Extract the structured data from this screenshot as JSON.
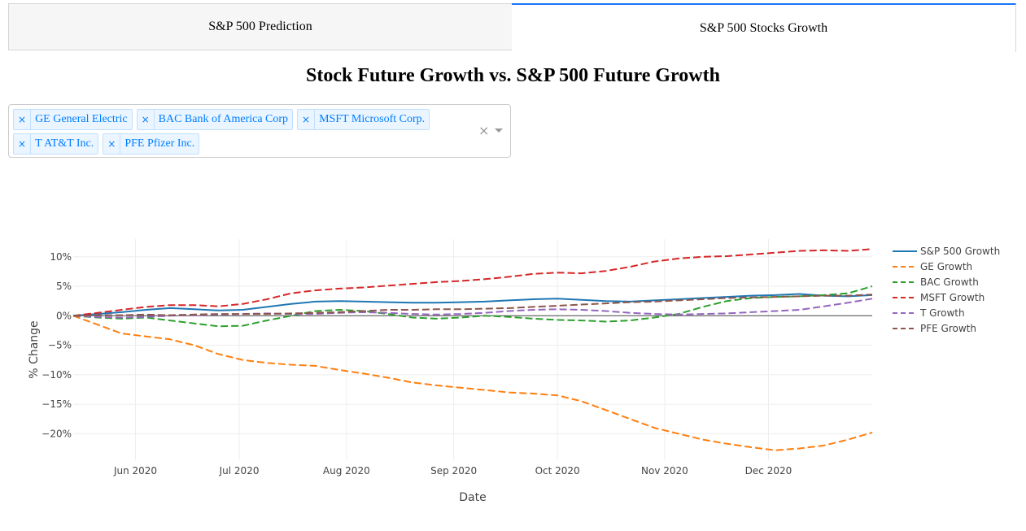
{
  "tabs": [
    {
      "label": "S&P 500 Prediction",
      "active": false
    },
    {
      "label": "S&P 500 Stocks Growth",
      "active": true
    }
  ],
  "page_title": "Stock Future Growth vs. S&P 500 Future Growth",
  "dropdown": {
    "selected": [
      {
        "label": "GE General Electric"
      },
      {
        "label": "BAC Bank of America Corp"
      },
      {
        "label": "MSFT Microsoft Corp."
      },
      {
        "label": "T AT&T Inc."
      },
      {
        "label": "PFE Pfizer Inc."
      }
    ],
    "remove_glyph": "×",
    "clear_glyph": "×"
  },
  "chart_data": {
    "type": "line",
    "xlabel": "Date",
    "ylabel": "% Change",
    "xlim": [
      "2020-05-14",
      "2020-12-31"
    ],
    "ylim": [
      -24.5,
      13
    ],
    "x_ticks": [
      "Jun 2020",
      "Jul 2020",
      "Aug 2020",
      "Sep 2020",
      "Oct 2020",
      "Nov 2020",
      "Dec 2020"
    ],
    "y_ticks": [
      "10%",
      "5%",
      "0%",
      "−5%",
      "−10%",
      "−15%",
      "−20%"
    ],
    "y_tick_values": [
      10,
      5,
      0,
      -5,
      -10,
      -15,
      -20
    ],
    "legend_position": "right",
    "grid": true,
    "x": [
      "2020-05-14",
      "2020-05-21",
      "2020-05-28",
      "2020-06-04",
      "2020-06-11",
      "2020-06-18",
      "2020-06-25",
      "2020-07-02",
      "2020-07-09",
      "2020-07-16",
      "2020-07-23",
      "2020-07-30",
      "2020-08-06",
      "2020-08-13",
      "2020-08-20",
      "2020-08-27",
      "2020-09-03",
      "2020-09-10",
      "2020-09-17",
      "2020-09-24",
      "2020-10-01",
      "2020-10-08",
      "2020-10-15",
      "2020-10-22",
      "2020-10-29",
      "2020-11-05",
      "2020-11-12",
      "2020-11-19",
      "2020-11-26",
      "2020-12-03",
      "2020-12-10",
      "2020-12-17",
      "2020-12-24",
      "2020-12-31"
    ],
    "series": [
      {
        "name": "S&P 500 Growth",
        "color": "#1f77b4",
        "dash": "solid",
        "values": [
          0,
          0.3,
          0.6,
          1.0,
          1.3,
          1.1,
          0.9,
          1.0,
          1.5,
          2.0,
          2.4,
          2.5,
          2.4,
          2.3,
          2.2,
          2.2,
          2.3,
          2.4,
          2.6,
          2.8,
          2.9,
          2.7,
          2.5,
          2.4,
          2.6,
          2.8,
          3.0,
          3.2,
          3.4,
          3.5,
          3.7,
          3.4,
          3.3,
          3.5
        ]
      },
      {
        "name": "GE Growth",
        "color": "#ff7f0e",
        "dash": "dash",
        "values": [
          0,
          -1.5,
          -3.0,
          -3.5,
          -4.0,
          -5.0,
          -6.5,
          -7.5,
          -8.0,
          -8.3,
          -8.5,
          -9.2,
          -9.8,
          -10.5,
          -11.3,
          -11.8,
          -12.2,
          -12.6,
          -13.0,
          -13.2,
          -13.5,
          -14.5,
          -16.0,
          -17.5,
          -19.0,
          -20.0,
          -21.0,
          -21.7,
          -22.3,
          -22.8,
          -22.5,
          -22.0,
          -21.0,
          -19.8
        ]
      },
      {
        "name": "BAC Growth",
        "color": "#2ca02c",
        "dash": "dash",
        "values": [
          0,
          -0.3,
          -0.5,
          -0.3,
          -0.8,
          -1.3,
          -1.8,
          -1.7,
          -0.8,
          0,
          0.8,
          1.0,
          0.8,
          0.3,
          -0.3,
          -0.5,
          -0.3,
          0,
          -0.2,
          -0.5,
          -0.7,
          -0.8,
          -1.0,
          -0.8,
          -0.3,
          0.3,
          1.5,
          2.5,
          3.0,
          3.2,
          3.3,
          3.5,
          3.8,
          5.0
        ]
      },
      {
        "name": "MSFT Growth",
        "color": "#d62728",
        "dash": "dash",
        "values": [
          0,
          0.5,
          1.0,
          1.5,
          1.8,
          1.8,
          1.6,
          2.0,
          2.8,
          3.8,
          4.3,
          4.6,
          4.8,
          5.1,
          5.4,
          5.7,
          5.9,
          6.2,
          6.6,
          7.1,
          7.3,
          7.2,
          7.6,
          8.3,
          9.2,
          9.7,
          10.0,
          10.1,
          10.4,
          10.7,
          11.0,
          11.1,
          11.0,
          11.3
        ]
      },
      {
        "name": "T Growth",
        "color": "#9467bd",
        "dash": "dash",
        "values": [
          0,
          -0.2,
          -0.3,
          -0.2,
          0,
          0.1,
          0.2,
          0.3,
          0.4,
          0.3,
          0.3,
          0.5,
          0.6,
          0.5,
          0.3,
          0.2,
          0.3,
          0.5,
          0.8,
          1.0,
          1.1,
          1.0,
          0.8,
          0.5,
          0.3,
          0.2,
          0.3,
          0.4,
          0.6,
          0.8,
          1.0,
          1.6,
          2.2,
          2.9
        ]
      },
      {
        "name": "PFE Growth",
        "color": "#8c564b",
        "dash": "dash",
        "values": [
          0,
          0.1,
          0.1,
          0.2,
          0.1,
          0.2,
          0.3,
          0.3,
          0.3,
          0.4,
          0.5,
          0.6,
          0.8,
          1.0,
          1.0,
          1.1,
          1.1,
          1.2,
          1.3,
          1.5,
          1.7,
          1.9,
          2.1,
          2.3,
          2.4,
          2.6,
          2.8,
          3.0,
          3.1,
          3.2,
          3.3,
          3.4,
          3.4,
          3.6
        ]
      }
    ]
  }
}
